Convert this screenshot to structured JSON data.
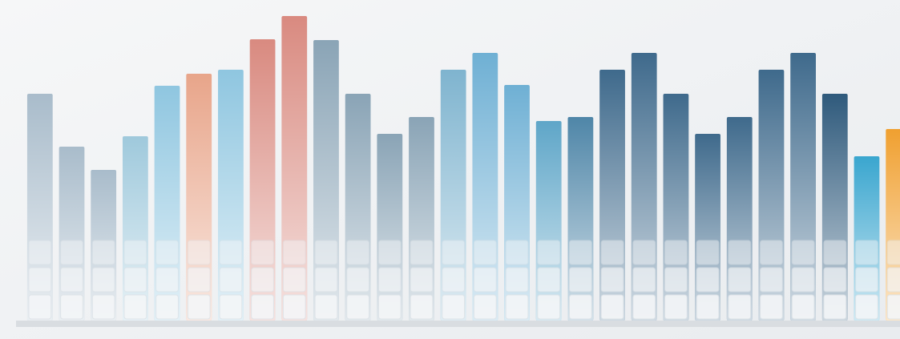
{
  "chart_data": {
    "type": "bar",
    "categories": [
      null,
      null,
      null,
      null,
      null,
      null,
      null,
      null,
      null,
      null,
      null,
      null,
      null,
      null,
      null,
      null,
      null,
      null,
      null,
      null,
      null,
      null,
      null,
      null,
      null,
      null,
      null,
      null
    ],
    "values": [
      283,
      217,
      188,
      230,
      293,
      308,
      313,
      351,
      380,
      350,
      283,
      233,
      254,
      313,
      334,
      294,
      249,
      254,
      313,
      334,
      283,
      233,
      254,
      313,
      334,
      283,
      205,
      239
    ],
    "colors": [
      "#a9bccb",
      "#a9bccb",
      "#a9bccb",
      "#9fc9dc",
      "#8fc6e0",
      "#e8a58a",
      "#8fc6e0",
      "#d98a80",
      "#d98a80",
      "#8aa4b6",
      "#8aa4b6",
      "#8aa4b6",
      "#8aa4b6",
      "#7fb4cf",
      "#6fb0d4",
      "#6fb0d4",
      "#5fa6c8",
      "#4f86a8",
      "#3f6a8c",
      "#3f6a8c",
      "#3f6a8c",
      "#3f6a8c",
      "#3f6a8c",
      "#3f6a8c",
      "#3f6a8c",
      "#2f5a7c",
      "#3aa6cf",
      "#f0a030"
    ],
    "ylim": [
      0,
      400
    ]
  }
}
